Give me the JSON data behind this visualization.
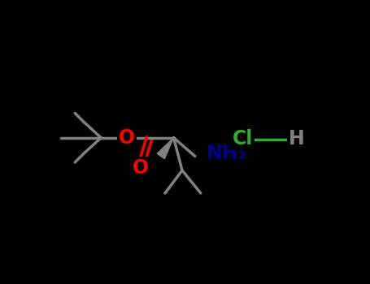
{
  "background_color": "#000000",
  "fig_width": 4.55,
  "fig_height": 3.5,
  "dpi": 100,
  "bond_color": "#808080",
  "O_color": "#ff0000",
  "N_color": "#00008b",
  "Cl_color": "#33aa33",
  "H_color": "#808080",
  "lw": 2.5,
  "xlim": [
    0.0,
    1.0
  ],
  "ylim": [
    0.0,
    1.0
  ]
}
